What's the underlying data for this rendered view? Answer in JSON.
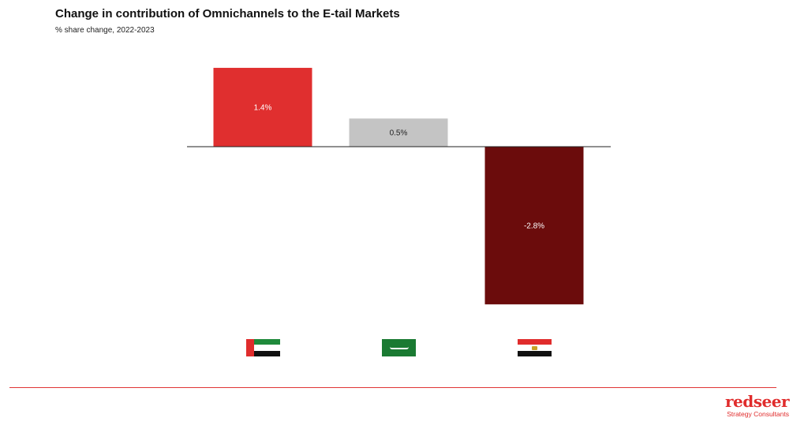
{
  "header": {
    "title": "Change in contribution of Omnichannels to the E-tail Markets",
    "subtitle": "% share change, 2022-2023"
  },
  "chart_data": {
    "type": "bar",
    "categories": [
      "UAE",
      "KSA",
      "Egypt"
    ],
    "values": [
      1.4,
      0.5,
      -2.8
    ],
    "data_labels": [
      "1.4%",
      "0.5%",
      "-2.8%"
    ],
    "bar_colors": [
      "#e02f2f",
      "#c4c4c4",
      "#6b0c0c"
    ],
    "label_colors": [
      "#ffffff",
      "#222222",
      "#ffffff"
    ],
    "ylim": [
      -2.8,
      1.4
    ],
    "grid": false,
    "legend": "none",
    "category_markers": [
      "uae-flag-icon",
      "saudi-flag-icon",
      "egypt-flag-icon"
    ]
  },
  "colors": {
    "accent": "#e02c2c",
    "divider": "#e03535"
  },
  "brand": {
    "name": "redseer",
    "tagline": "Strategy Consultants"
  }
}
